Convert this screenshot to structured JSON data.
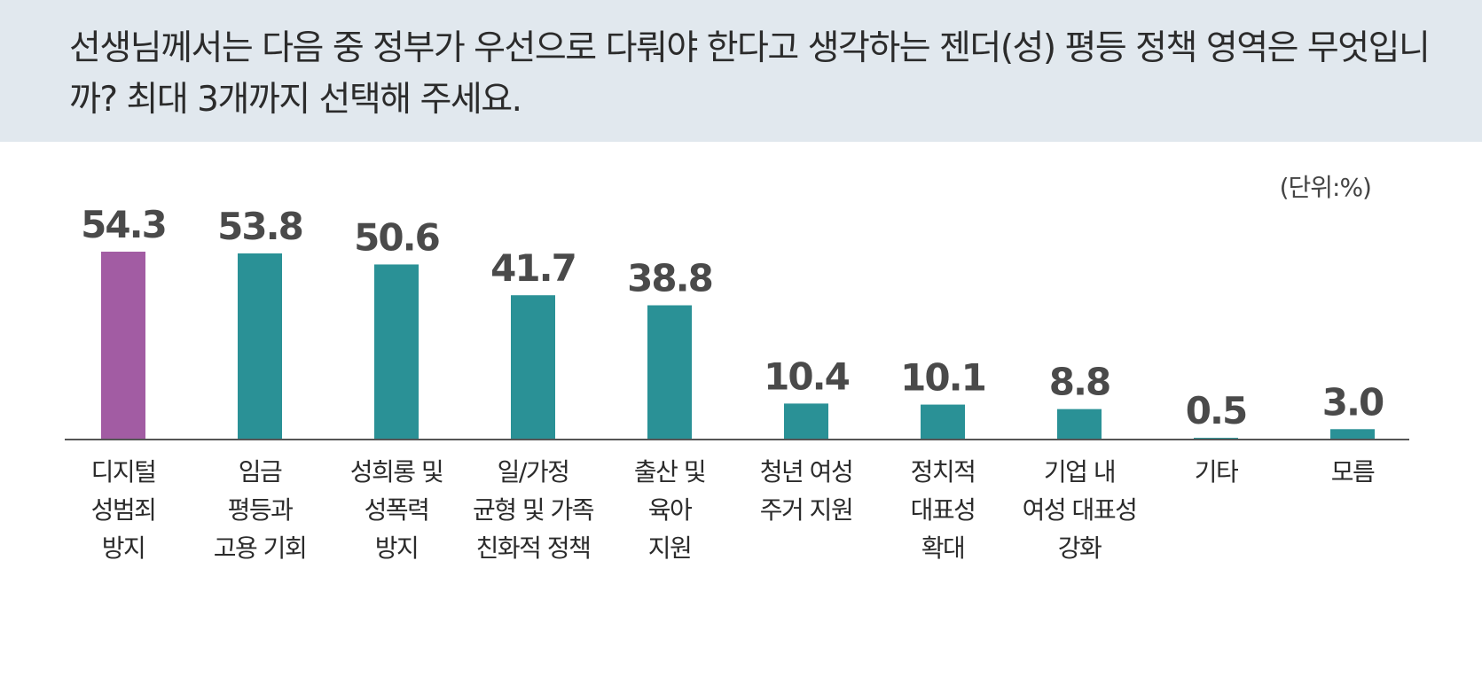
{
  "question": "선생님께서는 다음 중 정부가 우선으로 다뤄야 한다고 생각하는 젠더(성) 평등 정책 영역은 무엇입니까? 최대 3개까지 선택해 주세요.",
  "unit_label": "(단위:%)",
  "colors": {
    "header_bg": "#e1e8ee",
    "highlight": "#a25ca3",
    "bar": "#2a9196",
    "axis": "#555555",
    "value_text": "#4a4a4a"
  },
  "chart_data": {
    "type": "bar",
    "categories": [
      [
        "디지털",
        "성범죄",
        "방지"
      ],
      [
        "임금",
        "평등과",
        "고용 기회"
      ],
      [
        "성희롱 및",
        "성폭력",
        "방지"
      ],
      [
        "일/가정",
        "균형 및 가족",
        "친화적 정책"
      ],
      [
        "출산 및",
        "육아",
        "지원"
      ],
      [
        "청년 여성",
        "주거 지원"
      ],
      [
        "정치적",
        "대표성",
        "확대"
      ],
      [
        "기업 내",
        "여성 대표성",
        "강화"
      ],
      [
        "기타"
      ],
      [
        "모름"
      ]
    ],
    "values": [
      54.3,
      53.8,
      50.6,
      41.7,
      38.8,
      10.4,
      10.1,
      8.8,
      0.5,
      3.0
    ],
    "value_labels": [
      "54.3",
      "53.8",
      "50.6",
      "41.7",
      "38.8",
      "10.4",
      "10.1",
      "8.8",
      "0.5",
      "3.0"
    ],
    "highlight_index": 0,
    "ylim": [
      0,
      60
    ],
    "grid": false,
    "title": "",
    "xlabel": "",
    "ylabel": ""
  }
}
